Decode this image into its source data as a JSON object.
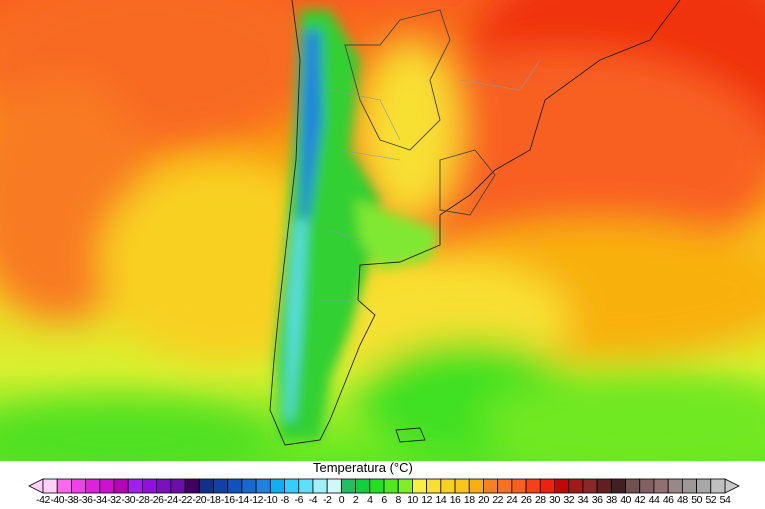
{
  "legend": {
    "title": "Temperatura (°C)",
    "ticks": [
      "-42",
      "-40",
      "-38",
      "-36",
      "-34",
      "-32",
      "-30",
      "-28",
      "-26",
      "-24",
      "-22",
      "-20",
      "-18",
      "-16",
      "-14",
      "-12",
      "-10",
      "-8",
      "-6",
      "-4",
      "-2",
      "0",
      "2",
      "4",
      "6",
      "8",
      "10",
      "12",
      "14",
      "16",
      "18",
      "20",
      "22",
      "24",
      "26",
      "28",
      "30",
      "32",
      "34",
      "36",
      "38",
      "40",
      "42",
      "44",
      "46",
      "48",
      "50",
      "52",
      "54"
    ],
    "colors": [
      "#ffd0f8",
      "#ff66ee",
      "#f040e8",
      "#e020e0",
      "#d010d0",
      "#b800b8",
      "#a020f0",
      "#9010e0",
      "#7a10c0",
      "#6a10a8",
      "#400060",
      "#10308a",
      "#1040a8",
      "#1050c0",
      "#1868d0",
      "#2080e0",
      "#10b0f0",
      "#30d0f8",
      "#60e0f8",
      "#a0f0f8",
      "#d0f8f8",
      "#20c060",
      "#10d040",
      "#20e020",
      "#50e820",
      "#80f020",
      "#f8f040",
      "#f8e030",
      "#f8d020",
      "#f8c818",
      "#f8b010",
      "#f88020",
      "#f87020",
      "#f86020",
      "#f84018",
      "#f02010",
      "#c00808",
      "#a01818",
      "#882828",
      "#602020",
      "#402020",
      "#705050",
      "#806060",
      "#907070",
      "#988888",
      "#a09898",
      "#a8a8a8",
      "#c0c0c0"
    ],
    "under_color": "#ffd0f8",
    "over_color": "#c8c8c8"
  }
}
